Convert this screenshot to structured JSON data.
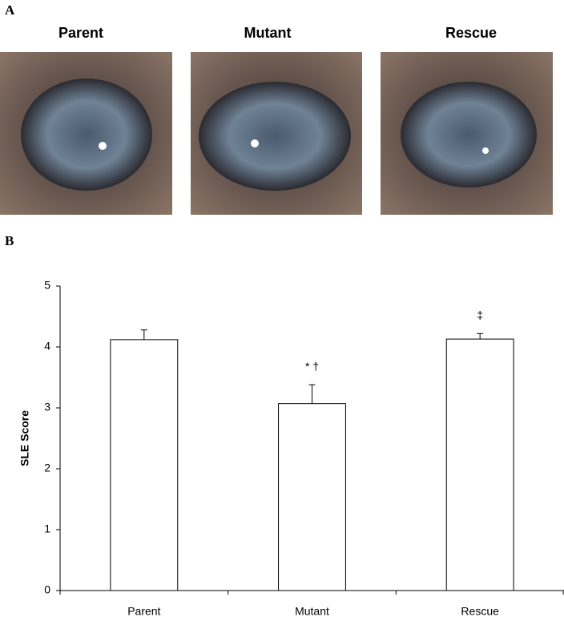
{
  "figure": {
    "panel_a": "A",
    "panel_b": "B",
    "photo_labels": [
      "Parent",
      "Mutant",
      "Rescue"
    ]
  },
  "chart_data": {
    "type": "bar",
    "ylabel": "SLE Score",
    "categories": [
      "Parent",
      "Mutant",
      "Rescue"
    ],
    "values": [
      4.12,
      3.07,
      4.13
    ],
    "errors": [
      0.16,
      0.31,
      0.09
    ],
    "color": "#ffffff",
    "ylim": [
      0,
      5
    ],
    "yticks": [
      0,
      1,
      2,
      3,
      4,
      5
    ],
    "annotations": [
      {
        "text": "* †",
        "category": "Mutant"
      },
      {
        "text": "‡",
        "category": "Rescue"
      }
    ]
  }
}
